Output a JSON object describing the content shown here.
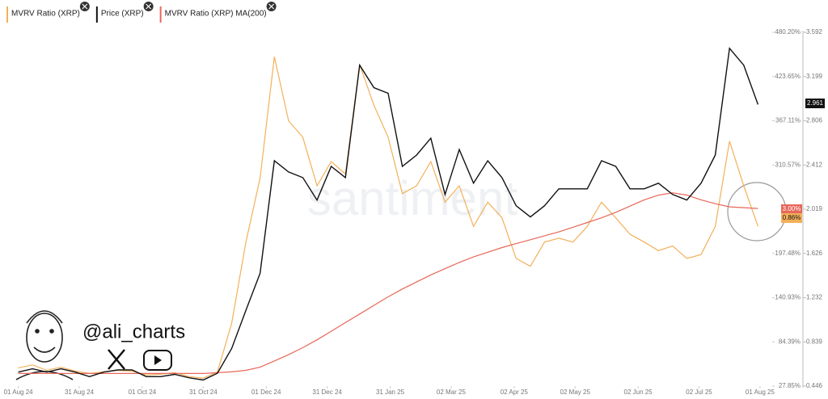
{
  "chart_data": {
    "type": "line",
    "legend": [
      "MVRV Ratio (XRP)",
      "Price (XRP)",
      "MVRV Ratio (XRP) MA(200)"
    ],
    "x": [
      "2024-08-01",
      "2024-08-08",
      "2024-08-15",
      "2024-08-22",
      "2024-08-29",
      "2024-09-05",
      "2024-09-12",
      "2024-09-19",
      "2024-09-26",
      "2024-10-03",
      "2024-10-10",
      "2024-10-17",
      "2024-10-24",
      "2024-10-31",
      "2024-11-07",
      "2024-11-14",
      "2024-11-21",
      "2024-11-28",
      "2024-12-05",
      "2024-12-12",
      "2024-12-19",
      "2024-12-26",
      "2025-01-02",
      "2025-01-09",
      "2025-01-16",
      "2025-01-23",
      "2025-01-30",
      "2025-02-06",
      "2025-02-13",
      "2025-02-20",
      "2025-02-27",
      "2025-03-06",
      "2025-03-13",
      "2025-03-20",
      "2025-03-27",
      "2025-04-03",
      "2025-04-10",
      "2025-04-17",
      "2025-04-24",
      "2025-05-01",
      "2025-05-08",
      "2025-05-15",
      "2025-05-22",
      "2025-05-29",
      "2025-06-05",
      "2025-06-12",
      "2025-06-19",
      "2025-06-26",
      "2025-07-03",
      "2025-07-10",
      "2025-07-17",
      "2025-07-24",
      "2025-07-31"
    ],
    "series": [
      {
        "name": "MVRV Ratio (XRP)",
        "color": "#f3b05a",
        "values": [
          51,
          55,
          48,
          52,
          47,
          44,
          46,
          48,
          47,
          42,
          43,
          45,
          40,
          38,
          46,
          108,
          212,
          294,
          449,
          367,
          346,
          284,
          315,
          299,
          439,
          387,
          346,
          274,
          284,
          315,
          263,
          284,
          232,
          263,
          243,
          191,
          181,
          212,
          217,
          212,
          232,
          263,
          243,
          222,
          212,
          201,
          207,
          191,
          196,
          232,
          341,
          284,
          232
        ]
      },
      {
        "name": "Price (XRP)",
        "color": "#111111",
        "axis": "y2",
        "values": [
          0.57,
          0.6,
          0.57,
          0.6,
          0.57,
          0.53,
          0.57,
          0.59,
          0.59,
          0.53,
          0.53,
          0.55,
          0.52,
          0.5,
          0.56,
          0.78,
          1.12,
          1.45,
          2.45,
          2.35,
          2.3,
          2.1,
          2.4,
          2.3,
          3.3,
          3.1,
          3.05,
          2.4,
          2.5,
          2.65,
          2.15,
          2.55,
          2.25,
          2.45,
          2.3,
          2.05,
          1.95,
          2.05,
          2.2,
          2.2,
          2.2,
          2.45,
          2.4,
          2.2,
          2.2,
          2.25,
          2.15,
          2.1,
          2.25,
          2.5,
          3.45,
          3.3,
          2.95
        ]
      },
      {
        "name": "MVRV Ratio (XRP) MA(200)",
        "color": "#e8675a",
        "values": [
          44,
          44,
          44,
          44,
          44,
          44,
          44,
          44,
          44,
          44,
          44,
          44,
          44,
          44,
          45,
          46,
          48,
          52,
          60,
          68,
          77,
          87,
          98,
          109,
          120,
          131,
          142,
          152,
          161,
          170,
          178,
          186,
          193,
          199,
          205,
          210,
          215,
          220,
          225,
          231,
          237,
          243,
          250,
          258,
          266,
          272,
          275,
          272,
          266,
          261,
          257,
          256,
          255
        ]
      }
    ],
    "xlim": [
      "2024-07-23",
      "2025-08-07"
    ],
    "xticks": [
      {
        "value": "2024-08-01",
        "label": "01 Aug 24"
      },
      {
        "value": "2024-08-31",
        "label": "31 Aug 24"
      },
      {
        "value": "2024-10-01",
        "label": "01 Oct 24"
      },
      {
        "value": "2024-10-31",
        "label": "31 Oct 24"
      },
      {
        "value": "2024-12-01",
        "label": "01 Dec 24"
      },
      {
        "value": "2024-12-31",
        "label": "31 Dec 24"
      },
      {
        "value": "2025-01-31",
        "label": "31 Jan 25"
      },
      {
        "value": "2025-03-02",
        "label": "02 Mar 25"
      },
      {
        "value": "2025-04-02",
        "label": "02 Apr 25"
      },
      {
        "value": "2025-05-02",
        "label": "02 May 25"
      },
      {
        "value": "2025-06-02",
        "label": "02 Jun 25"
      },
      {
        "value": "2025-07-02",
        "label": "02 Jul 25"
      },
      {
        "value": "2025-08-01",
        "label": "01 Aug 25"
      }
    ],
    "ylim": [
      27.85,
      480.2
    ],
    "yticks": [
      {
        "value": 480.2,
        "label": "480.20%"
      },
      {
        "value": 423.65,
        "label": "423.65%"
      },
      {
        "value": 367.11,
        "label": "367.11%"
      },
      {
        "value": 310.57,
        "label": "310.57%"
      },
      {
        "value": 197.48,
        "label": "197.48%"
      },
      {
        "value": 140.93,
        "label": "140.93%"
      },
      {
        "value": 84.39,
        "label": "84.39%"
      },
      {
        "value": 27.85,
        "label": "27.85%"
      }
    ],
    "y2lim": [
      0.446,
      3.592
    ],
    "y2ticks": [
      3.592,
      3.199,
      2.806,
      2.412,
      2.019,
      1.626,
      1.232,
      0.839,
      0.446
    ],
    "current_labels": [
      "2.961",
      "3.00%",
      "0.86%"
    ],
    "watermark": "santiment",
    "handle": "@ali_charts"
  }
}
